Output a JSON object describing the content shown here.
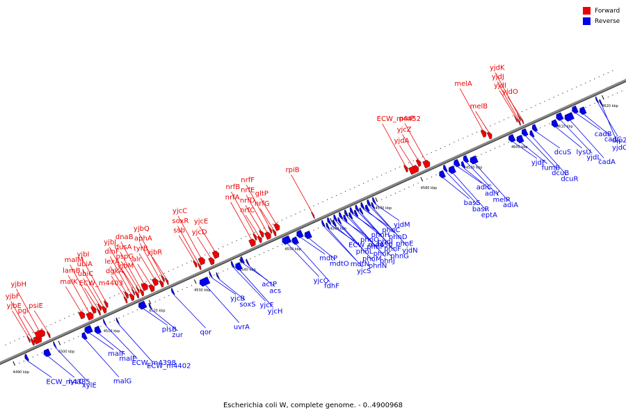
{
  "legend": [
    {
      "label": "Forward",
      "color": "#ee0000"
    },
    {
      "label": "Reverse",
      "color": "#0000ee"
    }
  ],
  "caption": "Escherichia coli W, complete genome. - 0..4900968",
  "axis": {
    "start_kbp": 4490,
    "end_kbp": 4624,
    "tick_step_kbp": 10,
    "tick_labels": [
      "4490 kbp",
      "4500 kbp",
      "4510 kbp",
      "4520 kbp",
      "4530 kbp",
      "4540 kbp",
      "4550 kbp",
      "4560 kbp",
      "4570 kbp",
      "4580 kbp",
      "4590 kbp",
      "4600 kbp",
      "4610 kbp",
      "4620 kbp"
    ]
  },
  "colors": {
    "forward": "#ee0000",
    "reverse": "#0000ee",
    "backbone": "#888888"
  },
  "forward_genes": [
    {
      "name": "pgi",
      "pos": 4495.6,
      "len": 1.6
    },
    {
      "name": "yjbE",
      "pos": 4494.6,
      "len": 0.3
    },
    {
      "name": "yjbF",
      "pos": 4495.0,
      "len": 0.6
    },
    {
      "name": "yjbH",
      "pos": 4496.3,
      "len": 2.0
    },
    {
      "name": "psiE",
      "pos": 4498.6,
      "len": 0.4
    },
    {
      "name": "malK",
      "pos": 4506.0,
      "len": 1.1
    },
    {
      "name": "lamB",
      "pos": 4507.3,
      "len": 1.3
    },
    {
      "name": "malM",
      "pos": 4508.7,
      "len": 0.9
    },
    {
      "name": "ECW_m4403",
      "pos": 4509.7,
      "len": 0.4
    },
    {
      "name": "ubiC",
      "pos": 4510.2,
      "len": 0.5
    },
    {
      "name": "ubiA",
      "pos": 4510.7,
      "len": 0.8
    },
    {
      "name": "yjbI",
      "pos": 4511.6,
      "len": 0.6
    },
    {
      "name": "dgkA",
      "pos": 4515.6,
      "len": 0.4
    },
    {
      "name": "lexA",
      "pos": 4516.1,
      "len": 0.6
    },
    {
      "name": "dinF",
      "pos": 4516.8,
      "len": 0.8
    },
    {
      "name": "yjbJ",
      "pos": 4517.7,
      "len": 0.3
    },
    {
      "name": "yjbM",
      "pos": 4518.1,
      "len": 0.5
    },
    {
      "name": "pspG",
      "pos": 4518.7,
      "len": 0.3
    },
    {
      "name": "dusA",
      "pos": 4519.1,
      "len": 0.6
    },
    {
      "name": "dnaB",
      "pos": 4519.8,
      "len": 1.2
    },
    {
      "name": "alr",
      "pos": 4521.1,
      "len": 1.0
    },
    {
      "name": "tyrB",
      "pos": 4522.2,
      "len": 1.1
    },
    {
      "name": "aphA",
      "pos": 4523.4,
      "len": 0.7
    },
    {
      "name": "yjbQ",
      "pos": 4524.2,
      "len": 0.4
    },
    {
      "name": "yjbR",
      "pos": 4524.7,
      "len": 0.4
    },
    {
      "name": "ssb",
      "pos": 4531.3,
      "len": 0.5
    },
    {
      "name": "soxR",
      "pos": 4531.9,
      "len": 0.4
    },
    {
      "name": "yjcC",
      "pos": 4532.4,
      "len": 1.2
    },
    {
      "name": "yjcD",
      "pos": 4534.3,
      "len": 1.0
    },
    {
      "name": "yjcE",
      "pos": 4535.5,
      "len": 1.2
    },
    {
      "name": "nrfA",
      "pos": 4543.2,
      "len": 1.2
    },
    {
      "name": "nrfB",
      "pos": 4544.5,
      "len": 0.5
    },
    {
      "name": "nrfC",
      "pos": 4545.1,
      "len": 0.7
    },
    {
      "name": "nrfD",
      "pos": 4545.9,
      "len": 0.7
    },
    {
      "name": "nrfE",
      "pos": 4546.7,
      "len": 1.1
    },
    {
      "name": "nrfF",
      "pos": 4547.9,
      "len": 0.4
    },
    {
      "name": "nrfG",
      "pos": 4548.4,
      "len": 0.5
    },
    {
      "name": "gltP",
      "pos": 4549.1,
      "len": 1.0
    },
    {
      "name": "rpiB",
      "pos": 4557.0,
      "len": 0.3
    },
    {
      "name": "ECW_m4452",
      "pos": 4577.8,
      "len": 0.6
    },
    {
      "name": "yjdA",
      "pos": 4578.5,
      "len": 1.9
    },
    {
      "name": "yjcZ",
      "pos": 4580.5,
      "len": 0.8
    },
    {
      "name": "proP",
      "pos": 4581.6,
      "len": 1.3
    },
    {
      "name": "melA",
      "pos": 4594.8,
      "len": 0.9
    },
    {
      "name": "melB",
      "pos": 4595.8,
      "len": 0.8
    },
    {
      "name": "yjdI",
      "pos": 4602.2,
      "len": 0.2
    },
    {
      "name": "yjdJ",
      "pos": 4602.5,
      "len": 0.3
    },
    {
      "name": "yjdK",
      "pos": 4602.9,
      "len": 0.2
    },
    {
      "name": "yjdO",
      "pos": 4603.2,
      "len": 0.2
    }
  ],
  "reverse_genes": [
    {
      "name": "ECW_m4385",
      "pos": 4492.4,
      "len": 0.6
    },
    {
      "name": "lysC",
      "pos": 4496.2,
      "len": 1.3
    },
    {
      "name": "xylE",
      "pos": 4498.8,
      "len": 0.3
    },
    {
      "name": "malG",
      "pos": 4504.6,
      "len": 0.9
    },
    {
      "name": "malF",
      "pos": 4505.6,
      "len": 1.5
    },
    {
      "name": "malE",
      "pos": 4507.4,
      "len": 1.2
    },
    {
      "name": "ECW_m4398",
      "pos": 4509.8,
      "len": 0.3
    },
    {
      "name": "ECW_m4402",
      "pos": 4512.3,
      "len": 0.3
    },
    {
      "name": "plsB",
      "pos": 4517.5,
      "len": 1.5
    },
    {
      "name": "zur",
      "pos": 4519.5,
      "len": 0.3
    },
    {
      "name": "qor",
      "pos": 4524.8,
      "len": 0.4
    },
    {
      "name": "uvrA",
      "pos": 4530.6,
      "len": 2.0
    },
    {
      "name": "yjcB",
      "pos": 4533.2,
      "len": 0.3
    },
    {
      "name": "soxS",
      "pos": 4534.4,
      "len": 0.3
    },
    {
      "name": "yjcF",
      "pos": 4538.0,
      "len": 0.4
    },
    {
      "name": "yjcH",
      "pos": 4538.5,
      "len": 1.2
    },
    {
      "name": "actP",
      "pos": 4540.0,
      "len": 0.6
    },
    {
      "name": "acs",
      "pos": 4541.0,
      "len": 0.3
    },
    {
      "name": "yjcO",
      "pos": 4549.2,
      "len": 1.7
    },
    {
      "name": "fdhF",
      "pos": 4551.0,
      "len": 1.2
    },
    {
      "name": "mdtP",
      "pos": 4552.4,
      "len": 1.2
    },
    {
      "name": "mdtO",
      "pos": 4553.8,
      "len": 1.3
    },
    {
      "name": "mdtN",
      "pos": 4558.0,
      "len": 0.4
    },
    {
      "name": "yjcS",
      "pos": 4558.6,
      "len": 0.4
    },
    {
      "name": "ECW_m4450",
      "pos": 4559.2,
      "len": 0.5
    },
    {
      "name": "phnL",
      "pos": 4560.0,
      "len": 0.5
    },
    {
      "name": "phnM",
      "pos": 4560.6,
      "len": 0.5
    },
    {
      "name": "phnN",
      "pos": 4561.2,
      "len": 0.4
    },
    {
      "name": "phnO",
      "pos": 4561.8,
      "len": 0.5
    },
    {
      "name": "phnP",
      "pos": 4562.4,
      "len": 0.5
    },
    {
      "name": "phnK",
      "pos": 4563.0,
      "len": 0.5
    },
    {
      "name": "phnJ",
      "pos": 4563.6,
      "len": 0.5
    },
    {
      "name": "phnH",
      "pos": 4564.2,
      "len": 0.5
    },
    {
      "name": "phnI",
      "pos": 4564.8,
      "len": 0.5
    },
    {
      "name": "phnF",
      "pos": 4565.4,
      "len": 0.5
    },
    {
      "name": "phnG",
      "pos": 4566.0,
      "len": 0.4
    },
    {
      "name": "phnC",
      "pos": 4566.6,
      "len": 0.5
    },
    {
      "name": "phnD",
      "pos": 4567.2,
      "len": 0.6
    },
    {
      "name": "phnE",
      "pos": 4568.0,
      "len": 0.5
    },
    {
      "name": "yjdN",
      "pos": 4568.6,
      "len": 0.4
    },
    {
      "name": "yjdM",
      "pos": 4569.2,
      "len": 0.4
    },
    {
      "name": "basS",
      "pos": 4583.5,
      "len": 1.1
    },
    {
      "name": "basR",
      "pos": 4584.8,
      "len": 0.6
    },
    {
      "name": "eptA",
      "pos": 4585.6,
      "len": 1.3
    },
    {
      "name": "adiC",
      "pos": 4587.1,
      "len": 1.1
    },
    {
      "name": "adiY",
      "pos": 4588.4,
      "len": 0.6
    },
    {
      "name": "melR",
      "pos": 4589.2,
      "len": 0.9
    },
    {
      "name": "adiA",
      "pos": 4590.3,
      "len": 1.5
    },
    {
      "name": "yjdF",
      "pos": 4599.2,
      "len": 1.2
    },
    {
      "name": "fumB",
      "pos": 4600.6,
      "len": 1.3
    },
    {
      "name": "dcuB",
      "pos": 4602.1,
      "len": 1.1
    },
    {
      "name": "dcuR",
      "pos": 4603.5,
      "len": 0.7
    },
    {
      "name": "dcuS",
      "pos": 4604.4,
      "len": 0.9
    },
    {
      "name": "lysU",
      "pos": 4608.3,
      "len": 1.2
    },
    {
      "name": "yjdL",
      "pos": 4609.7,
      "len": 1.3
    },
    {
      "name": "cadA",
      "pos": 4611.2,
      "len": 1.8
    },
    {
      "name": "cadB",
      "pos": 4613.2,
      "len": 1.1
    },
    {
      "name": "cadC",
      "pos": 4614.5,
      "len": 1.2
    },
    {
      "name": "dipZ",
      "pos": 4618.5,
      "len": 0.3
    },
    {
      "name": "yjdC",
      "pos": 4619.0,
      "len": 0.3
    }
  ]
}
